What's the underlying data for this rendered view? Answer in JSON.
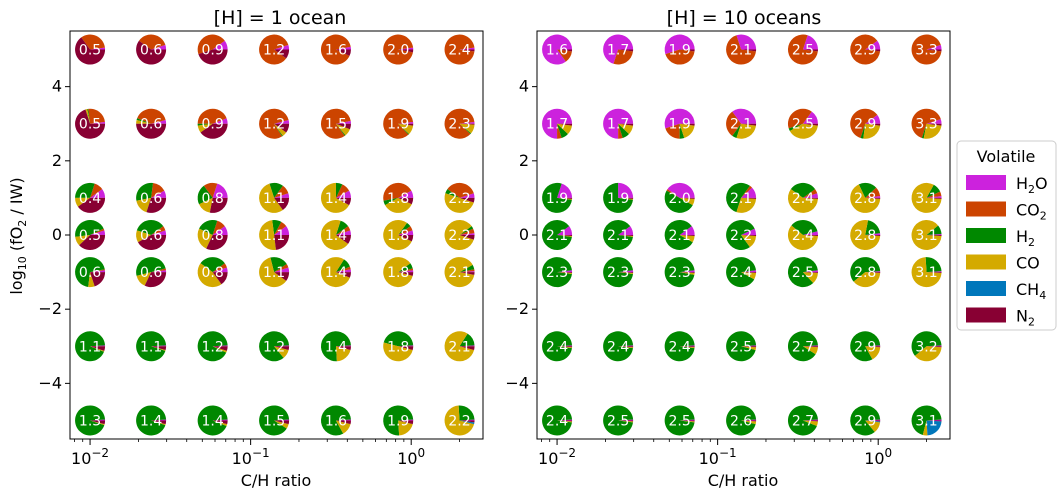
{
  "figure": {
    "ylabel": "log$_{10}$ (fO$_2$ / IW)",
    "legend_title": "Volatile",
    "legend": [
      {
        "key": "H2O",
        "base": "H",
        "sub": "2",
        "tail": "O",
        "color": "#cc22dd"
      },
      {
        "key": "CO2",
        "base": "CO",
        "sub": "2",
        "tail": "",
        "color": "#cc4400"
      },
      {
        "key": "H2",
        "base": "H",
        "sub": "2",
        "tail": "",
        "color": "#008800"
      },
      {
        "key": "CO",
        "base": "CO",
        "sub": "",
        "tail": "",
        "color": "#d4aa00"
      },
      {
        "key": "CH4",
        "base": "CH",
        "sub": "4",
        "tail": "",
        "color": "#0077bb"
      },
      {
        "key": "N2",
        "base": "N",
        "sub": "2",
        "tail": "",
        "color": "#880033"
      }
    ]
  },
  "chart_data": [
    {
      "type": "pie-grid",
      "title": "[H] = 1 ocean",
      "xlabel": "C/H ratio",
      "ylabel": "log10 (fO2 / IW)",
      "xscale": "log",
      "xlim": [
        0.0075,
        2.8
      ],
      "ylim": [
        -5.5,
        5.5
      ],
      "x_ticks": [
        "10^-2",
        "10^-1",
        "10^0"
      ],
      "y_ticks": [
        -4,
        -2,
        0,
        2,
        4
      ],
      "x": [
        0.01,
        0.024,
        0.058,
        0.14,
        0.34,
        0.83,
        2.0
      ],
      "y": [
        5,
        3,
        1,
        0,
        -1,
        -3,
        -5
      ],
      "labels": [
        [
          "0.5",
          "0.6",
          "0.9",
          "1.2",
          "1.6",
          "2.0",
          "2.4"
        ],
        [
          "0.5",
          "0.6",
          "0.9",
          "1.2",
          "1.5",
          "1.9",
          "2.3"
        ],
        [
          "0.4",
          "0.6",
          "0.8",
          "1.1",
          "1.4",
          "1.8",
          "2.2"
        ],
        [
          "0.5",
          "0.6",
          "0.8",
          "1.1",
          "1.4",
          "1.8",
          "2.2"
        ],
        [
          "0.6",
          "0.6",
          "0.8",
          "1.1",
          "1.4",
          "1.8",
          "2.1"
        ],
        [
          "1.1",
          "1.1",
          "1.2",
          "1.2",
          "1.4",
          "1.8",
          "2.1"
        ],
        [
          "1.3",
          "1.4",
          "1.4",
          "1.5",
          "1.6",
          "1.9",
          "2.2"
        ]
      ],
      "fractions_order": [
        "H2O",
        "CO2",
        "H2",
        "CO",
        "CH4",
        "N2"
      ],
      "fractions": [
        [
          [
            0.02,
            0.33,
            0,
            0,
            0,
            0.65
          ],
          [
            0.05,
            0.35,
            0,
            0,
            0,
            0.6
          ],
          [
            0.1,
            0.45,
            0,
            0,
            0,
            0.45
          ],
          [
            0.05,
            0.85,
            0,
            0,
            0,
            0.1
          ],
          [
            0.03,
            0.9,
            0,
            0,
            0,
            0.07
          ],
          [
            0.02,
            0.95,
            0,
            0,
            0,
            0.03
          ],
          [
            0.02,
            0.96,
            0,
            0,
            0,
            0.02
          ]
        ],
        [
          [
            0.02,
            0.25,
            0.01,
            0.02,
            0,
            0.7
          ],
          [
            0.04,
            0.4,
            0.02,
            0.04,
            0,
            0.5
          ],
          [
            0.06,
            0.44,
            0.02,
            0.08,
            0,
            0.4
          ],
          [
            0.04,
            0.8,
            0.01,
            0.05,
            0,
            0.1
          ],
          [
            0.03,
            0.82,
            0.01,
            0.08,
            0,
            0.06
          ],
          [
            0.02,
            0.85,
            0.01,
            0.1,
            0,
            0.02
          ],
          [
            0.02,
            0.86,
            0.01,
            0.1,
            0,
            0.01
          ]
        ],
        [
          [
            0.1,
            0.1,
            0.3,
            0.1,
            0,
            0.4
          ],
          [
            0.08,
            0.15,
            0.3,
            0.17,
            0,
            0.3
          ],
          [
            0.2,
            0.15,
            0.22,
            0.15,
            0,
            0.28
          ],
          [
            0.05,
            0.1,
            0.15,
            0.55,
            0,
            0.15
          ],
          [
            0.08,
            0.1,
            0.07,
            0.67,
            0,
            0.08
          ],
          [
            0.08,
            0.45,
            0.05,
            0.35,
            0,
            0.07
          ],
          [
            0.05,
            0.35,
            0.05,
            0.5,
            0,
            0.05
          ]
        ],
        [
          [
            0.05,
            0.02,
            0.45,
            0.1,
            0,
            0.38
          ],
          [
            0.05,
            0.05,
            0.35,
            0.13,
            0,
            0.42
          ],
          [
            0.1,
            0.1,
            0.23,
            0.25,
            0,
            0.32
          ],
          [
            0.1,
            0.07,
            0.1,
            0.5,
            0,
            0.23
          ],
          [
            0.05,
            0.05,
            0.1,
            0.7,
            0,
            0.1
          ],
          [
            0.05,
            0.05,
            0.05,
            0.78,
            0,
            0.07
          ],
          [
            0.02,
            0.05,
            0.03,
            0.85,
            0,
            0.05
          ]
        ],
        [
          [
            0.02,
            0.01,
            0.7,
            0.07,
            0,
            0.2
          ],
          [
            0.02,
            0.02,
            0.5,
            0.14,
            0,
            0.32
          ],
          [
            0.05,
            0.05,
            0.3,
            0.45,
            0,
            0.15
          ],
          [
            0.05,
            0.04,
            0.2,
            0.61,
            0,
            0.1
          ],
          [
            0.03,
            0.03,
            0.1,
            0.78,
            0,
            0.06
          ],
          [
            0.02,
            0.02,
            0.06,
            0.86,
            0,
            0.04
          ],
          [
            0.01,
            0.02,
            0.05,
            0.89,
            0,
            0.03
          ]
        ],
        [
          [
            0.01,
            0,
            0.93,
            0.01,
            0,
            0.05
          ],
          [
            0.01,
            0,
            0.94,
            0.01,
            0,
            0.04
          ],
          [
            0.01,
            0,
            0.92,
            0.02,
            0,
            0.05
          ],
          [
            0.01,
            0,
            0.85,
            0.1,
            0,
            0.04
          ],
          [
            0.01,
            0,
            0.75,
            0.2,
            0,
            0.04
          ],
          [
            0.01,
            0,
            0.45,
            0.5,
            0,
            0.04
          ],
          [
            0.01,
            0,
            0.15,
            0.8,
            0,
            0.04
          ]
        ],
        [
          [
            0.01,
            0,
            0.94,
            0.01,
            0,
            0.04
          ],
          [
            0.01,
            0,
            0.94,
            0.01,
            0,
            0.04
          ],
          [
            0.01,
            0,
            0.93,
            0.02,
            0,
            0.04
          ],
          [
            0.01,
            0,
            0.9,
            0.05,
            0,
            0.04
          ],
          [
            0.01,
            0,
            0.82,
            0.13,
            0,
            0.04
          ],
          [
            0.01,
            0,
            0.75,
            0.2,
            0,
            0.04
          ],
          [
            0.01,
            0,
            0.25,
            0.7,
            0.02,
            0.02
          ]
        ]
      ]
    },
    {
      "type": "pie-grid",
      "title": "[H] = 10 oceans",
      "xlabel": "C/H ratio",
      "ylabel": "",
      "xscale": "log",
      "xlim": [
        0.0075,
        2.8
      ],
      "ylim": [
        -5.5,
        5.5
      ],
      "x_ticks": [
        "10^-2",
        "10^-1",
        "10^0"
      ],
      "y_ticks": [
        -4,
        -2,
        0,
        2,
        4
      ],
      "x": [
        0.01,
        0.024,
        0.058,
        0.14,
        0.34,
        0.83,
        2.0
      ],
      "y": [
        5,
        3,
        1,
        0,
        -1,
        -3,
        -5
      ],
      "labels": [
        [
          "1.6",
          "1.7",
          "1.9",
          "2.1",
          "2.5",
          "2.9",
          "3.3"
        ],
        [
          "1.7",
          "1.7",
          "1.9",
          "2.1",
          "2.5",
          "2.9",
          "3.3"
        ],
        [
          "1.9",
          "1.9",
          "2.0",
          "2.1",
          "2.4",
          "2.8",
          "3.1"
        ],
        [
          "2.1",
          "2.1",
          "2.1",
          "2.2",
          "2.4",
          "2.8",
          "3.1"
        ],
        [
          "2.3",
          "2.3",
          "2.3",
          "2.4",
          "2.5",
          "2.8",
          "3.1"
        ],
        [
          "2.4",
          "2.4",
          "2.4",
          "2.5",
          "2.7",
          "2.9",
          "3.2"
        ],
        [
          "2.4",
          "2.5",
          "2.5",
          "2.6",
          "2.7",
          "2.9",
          "3.1"
        ]
      ],
      "fractions_order": [
        "H2O",
        "CO2",
        "H2",
        "CO",
        "CH4",
        "N2"
      ],
      "fractions": [
        [
          [
            0.85,
            0.13,
            0,
            0,
            0,
            0.02
          ],
          [
            0.7,
            0.28,
            0,
            0,
            0,
            0.02
          ],
          [
            0.55,
            0.43,
            0,
            0,
            0,
            0.02
          ],
          [
            0.3,
            0.68,
            0,
            0,
            0,
            0.02
          ],
          [
            0.2,
            0.78,
            0,
            0,
            0,
            0.02
          ],
          [
            0.1,
            0.88,
            0,
            0,
            0,
            0.02
          ],
          [
            0.05,
            0.93,
            0,
            0,
            0,
            0.02
          ]
        ],
        [
          [
            0.75,
            0.05,
            0.08,
            0.1,
            0,
            0.02
          ],
          [
            0.75,
            0.05,
            0.08,
            0.1,
            0,
            0.02
          ],
          [
            0.55,
            0.2,
            0.05,
            0.18,
            0,
            0.02
          ],
          [
            0.35,
            0.3,
            0.05,
            0.28,
            0,
            0.02
          ],
          [
            0.15,
            0.4,
            0.03,
            0.4,
            0,
            0.02
          ],
          [
            0.1,
            0.6,
            0.03,
            0.25,
            0,
            0.02
          ],
          [
            0.05,
            0.65,
            0.02,
            0.26,
            0,
            0.02
          ]
        ],
        [
          [
            0.2,
            0,
            0.78,
            0.01,
            0,
            0.01
          ],
          [
            0.25,
            0,
            0.73,
            0.01,
            0,
            0.01
          ],
          [
            0.4,
            0.02,
            0.5,
            0.07,
            0,
            0.01
          ],
          [
            0.12,
            0.03,
            0.55,
            0.29,
            0,
            0.01
          ],
          [
            0.05,
            0.05,
            0.3,
            0.59,
            0,
            0.01
          ],
          [
            0.02,
            0.1,
            0.2,
            0.67,
            0,
            0.01
          ],
          [
            0.02,
            0.05,
            0.1,
            0.82,
            0,
            0.01
          ]
        ],
        [
          [
            0.1,
            0,
            0.88,
            0.01,
            0,
            0.01
          ],
          [
            0.1,
            0,
            0.88,
            0.01,
            0,
            0.01
          ],
          [
            0.1,
            0,
            0.82,
            0.07,
            0,
            0.01
          ],
          [
            0.07,
            0,
            0.78,
            0.14,
            0,
            0.01
          ],
          [
            0.04,
            0,
            0.35,
            0.6,
            0,
            0.01
          ],
          [
            0.02,
            0,
            0.2,
            0.77,
            0,
            0.01
          ],
          [
            0.01,
            0,
            0.1,
            0.88,
            0,
            0.01
          ]
        ],
        [
          [
            0.02,
            0,
            0.96,
            0.01,
            0,
            0.01
          ],
          [
            0.02,
            0,
            0.96,
            0.01,
            0,
            0.01
          ],
          [
            0.02,
            0,
            0.95,
            0.02,
            0,
            0.01
          ],
          [
            0.02,
            0,
            0.9,
            0.07,
            0,
            0.01
          ],
          [
            0.02,
            0,
            0.85,
            0.12,
            0,
            0.01
          ],
          [
            0.01,
            0,
            0.6,
            0.38,
            0,
            0.01
          ],
          [
            0.01,
            0,
            0.25,
            0.73,
            0,
            0.01
          ]
        ],
        [
          [
            0.01,
            0,
            0.97,
            0.01,
            0,
            0.01
          ],
          [
            0.01,
            0,
            0.97,
            0.01,
            0,
            0.01
          ],
          [
            0.01,
            0,
            0.97,
            0.01,
            0,
            0.01
          ],
          [
            0.01,
            0,
            0.95,
            0.03,
            0,
            0.01
          ],
          [
            0.01,
            0,
            0.9,
            0.08,
            0,
            0.01
          ],
          [
            0.01,
            0,
            0.82,
            0.16,
            0,
            0.01
          ],
          [
            0.01,
            0,
            0.6,
            0.38,
            0,
            0.01
          ]
        ],
        [
          [
            0.01,
            0,
            0.97,
            0.01,
            0,
            0.01
          ],
          [
            0.01,
            0,
            0.97,
            0.01,
            0,
            0.01
          ],
          [
            0.01,
            0,
            0.97,
            0.01,
            0,
            0.01
          ],
          [
            0.01,
            0,
            0.95,
            0.03,
            0,
            0.01
          ],
          [
            0.01,
            0,
            0.93,
            0.05,
            0,
            0.01
          ],
          [
            0.01,
            0,
            0.85,
            0.12,
            0.01,
            0.01
          ],
          [
            0.01,
            0,
            0.7,
            0.05,
            0.23,
            0.01
          ]
        ]
      ]
    }
  ]
}
